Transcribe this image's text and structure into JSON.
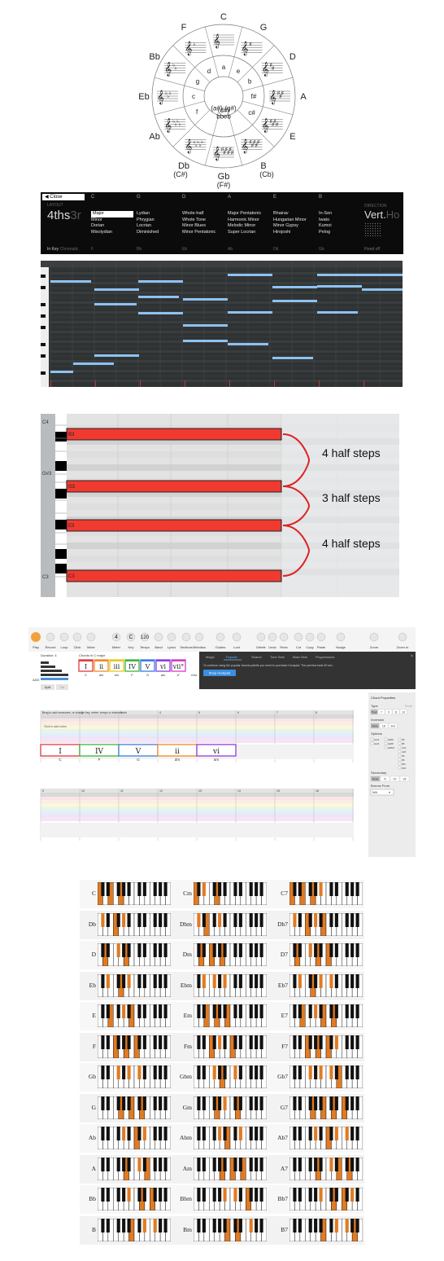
{
  "circle_of_fifths": {
    "outer_labels": [
      "C",
      "G",
      "D",
      "A",
      "E",
      "B",
      "Gb",
      "Db",
      "Ab",
      "Eb",
      "Bb",
      "F"
    ],
    "sub_labels": {
      "B": "(Cb)",
      "Gb": "(F#)",
      "Db": "(C#)"
    },
    "minor_keys": [
      "a",
      "e",
      "b",
      "f#",
      "c#",
      "(g#)",
      "(d#)",
      "(a#)",
      "bb",
      "eb",
      "f",
      "c",
      "g",
      "d"
    ]
  },
  "scale_panel": {
    "close_label": "Close",
    "layout_label": "LAYOUT",
    "layout_value": "4ths",
    "layout_alt": "3r",
    "columns": [
      {
        "header": "C",
        "items": [
          "Major",
          "Minor",
          "Dorian",
          "Mixolydian"
        ],
        "footer": "F"
      },
      {
        "header": "G",
        "items": [
          "Lydian",
          "Phrygian",
          "Locrian",
          "Diminished"
        ],
        "footer": "Bb"
      },
      {
        "header": "D",
        "items": [
          "Whole-half",
          "Whole Tone",
          "Minor Blues",
          "Minor Pentatonic"
        ],
        "footer": "Eb"
      },
      {
        "header": "A",
        "items": [
          "Major Pentatonic",
          "Harmonic Minor",
          "Melodic Minor",
          "Super Locrian"
        ],
        "footer": "Ab"
      },
      {
        "header": "E",
        "items": [
          "Bhairav",
          "Hungarian Minor",
          "Minor Gypsy",
          "Hirojoshi"
        ],
        "footer": "Db"
      },
      {
        "header": "B",
        "items": [
          "In-Sen",
          "Iwato",
          "Kumoi",
          "Pelog"
        ],
        "footer": "Gb"
      }
    ],
    "direction_label": "DIRECTION",
    "direction_value": "Vert.",
    "direction_alt": "Ho",
    "in_key_label": "In Key",
    "chromatic_label": "Chromatic",
    "fixed_label": "Fixed off"
  },
  "interval_diagram": {
    "row_labels": [
      "C4",
      "G#3",
      "C3"
    ],
    "notes": [
      "B3",
      "G3",
      "E3",
      "C3"
    ],
    "intervals": [
      "4 half steps",
      "3 half steps",
      "4 half steps"
    ]
  },
  "hookpad": {
    "toolbar": [
      {
        "label": "Play",
        "icon": "play-icon"
      },
      {
        "label": "Record",
        "icon": "record-icon"
      },
      {
        "label": "Loop",
        "icon": "loop-icon"
      },
      {
        "label": "Click",
        "icon": "metronome-icon"
      },
      {
        "label": "Mixer",
        "icon": "mixer-icon"
      },
      {
        "label": "Meter",
        "icon": "meter-icon"
      },
      {
        "label": "Key",
        "icon": "key-icon"
      },
      {
        "label": "Tempo",
        "icon": "tempo-icon"
      },
      {
        "label": "Band",
        "icon": "band-icon"
      },
      {
        "label": "Lyrics",
        "icon": "lyrics-icon"
      },
      {
        "label": "Sections",
        "icon": "sections-icon"
      },
      {
        "label": "Melodics",
        "icon": "melodics-icon"
      },
      {
        "label": "Guides",
        "icon": "guides-icon"
      },
      {
        "label": "Loot",
        "icon": "loot-icon"
      },
      {
        "label": "Delete",
        "icon": "delete-icon"
      },
      {
        "label": "Undo",
        "icon": "undo-icon"
      },
      {
        "label": "Redo",
        "icon": "redo-icon"
      },
      {
        "label": "Cut",
        "icon": "cut-icon"
      },
      {
        "label": "Copy",
        "icon": "copy-icon"
      },
      {
        "label": "Paste",
        "icon": "paste-icon"
      },
      {
        "label": "Nudge",
        "icon": "nudge-icon"
      },
      {
        "label": "Zoom",
        "icon": "zoom-icon"
      },
      {
        "label": "Zoom In",
        "icon": "zoom-in-icon"
      }
    ],
    "meter_value": "4",
    "key_value": "C",
    "tempo_value": "120",
    "duration_label": "Duration: 4",
    "chords_in_label": "Chords in C major",
    "reset_label": "Reset",
    "split_label": "Split",
    "tie_label": "Tie",
    "add_label": "ADD",
    "palette_roman": [
      "I",
      "ii",
      "iii",
      "IV",
      "V",
      "vi",
      "vii°"
    ],
    "palette_names": [
      "C",
      "dm",
      "em",
      "F",
      "G",
      "am",
      "b°",
      "rest"
    ],
    "palette_colors": [
      "#e23b3b",
      "#f08a24",
      "#e9c919",
      "#3db53d",
      "#3b7de2",
      "#8d3de2",
      "#d23bc8"
    ],
    "panel_tabs": [
      "Magic",
      "Popular",
      "Search",
      "Tone Sets",
      "Bass Sets",
      "Progressions"
    ],
    "panel_message": "To continue using the popular chords palette you need to purchase Hookpad. The preview lasts 90 sec.",
    "shop_label": "Shop Hookpad",
    "drag_hint": "Drag to add measures, or change key, meter, tempo or instruments",
    "click_hint": "Click to add notes",
    "measure_numbers_row1": [
      "1",
      "2",
      "3",
      "4",
      "5",
      "6",
      "7",
      "8"
    ],
    "measure_numbers_row2": [
      "9",
      "10",
      "11",
      "12",
      "13",
      "14",
      "15",
      "16"
    ],
    "section_chords": [
      {
        "roman": "I",
        "name": "C",
        "color": "#e23b3b"
      },
      {
        "roman": "IV",
        "name": "F",
        "color": "#3db53d"
      },
      {
        "roman": "V",
        "name": "G",
        "color": "#3b7de2"
      },
      {
        "roman": "ii",
        "name": "dm",
        "color": "#f08a24"
      },
      {
        "roman": "vi",
        "name": "am",
        "color": "#8d3de2"
      }
    ],
    "chord_props_title": "Chord Properties",
    "type_label": "Type",
    "type_reset": "Reset",
    "type_options": [
      "Triad",
      "7",
      "9",
      "11",
      "13"
    ],
    "inversion_label": "Inversion",
    "inversion_options": [
      "None",
      "1st",
      "2nd"
    ],
    "options_label": "Options",
    "option_items": [
      "sus2",
      "sus4",
      "add6",
      "add9",
      "add11",
      "b5",
      "#5",
      "no3",
      "no5",
      "b9",
      "#9",
      "#11",
      "b13"
    ],
    "secondary_label": "Secondary",
    "secondary_options": [
      "None",
      "V/",
      "IV/",
      "vii/"
    ],
    "borrow_label": "Borrow From",
    "borrow_value": "N/A"
  },
  "chord_chart": {
    "rows": [
      [
        "C",
        "Cm",
        "C7"
      ],
      [
        "Db",
        "Dbm",
        "Db7"
      ],
      [
        "D",
        "Dm",
        "D7"
      ],
      [
        "Eb",
        "Ebm",
        "Eb7"
      ],
      [
        "E",
        "Em",
        "E7"
      ],
      [
        "F",
        "Fm",
        "F7"
      ],
      [
        "Gb",
        "Gbm",
        "Gb7"
      ],
      [
        "G",
        "Gm",
        "G7"
      ],
      [
        "Ab",
        "Abm",
        "Ab7"
      ],
      [
        "A",
        "Am",
        "A7"
      ],
      [
        "Bb",
        "Bbm",
        "Bb7"
      ],
      [
        "B",
        "Bm",
        "B7"
      ]
    ],
    "highlight_color": "#e07b24"
  }
}
